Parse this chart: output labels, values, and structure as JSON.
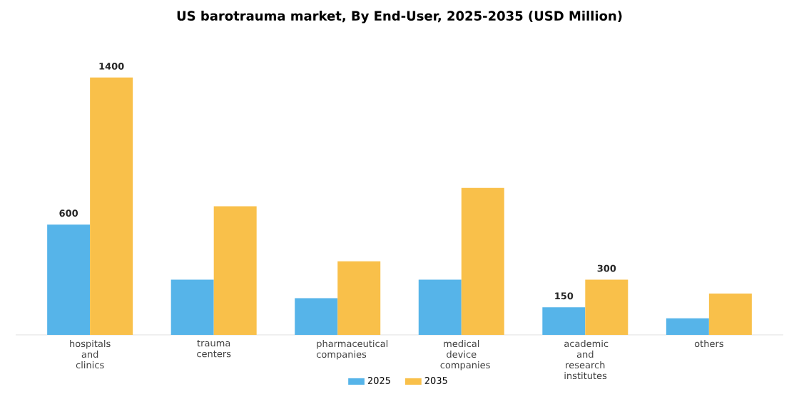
{
  "chart_data": {
    "type": "bar",
    "title": "US barotrauma market, By End-User, 2025-2035 (USD Million)",
    "categories": [
      "hospitals and clinics",
      "trauma centers",
      "pharmaceutical companies",
      "medical device companies",
      "academic and research institutes",
      "others"
    ],
    "series": [
      {
        "name": "2025",
        "color": "#56b4e9",
        "values": [
          600,
          300,
          200,
          300,
          150,
          90
        ],
        "value_labels": [
          "600",
          null,
          null,
          null,
          "150",
          null
        ]
      },
      {
        "name": "2035",
        "color": "#f9c04a",
        "values": [
          1400,
          700,
          400,
          800,
          300,
          225
        ],
        "value_labels": [
          "1400",
          null,
          null,
          null,
          "300",
          null
        ]
      }
    ],
    "legend": "bottom"
  }
}
